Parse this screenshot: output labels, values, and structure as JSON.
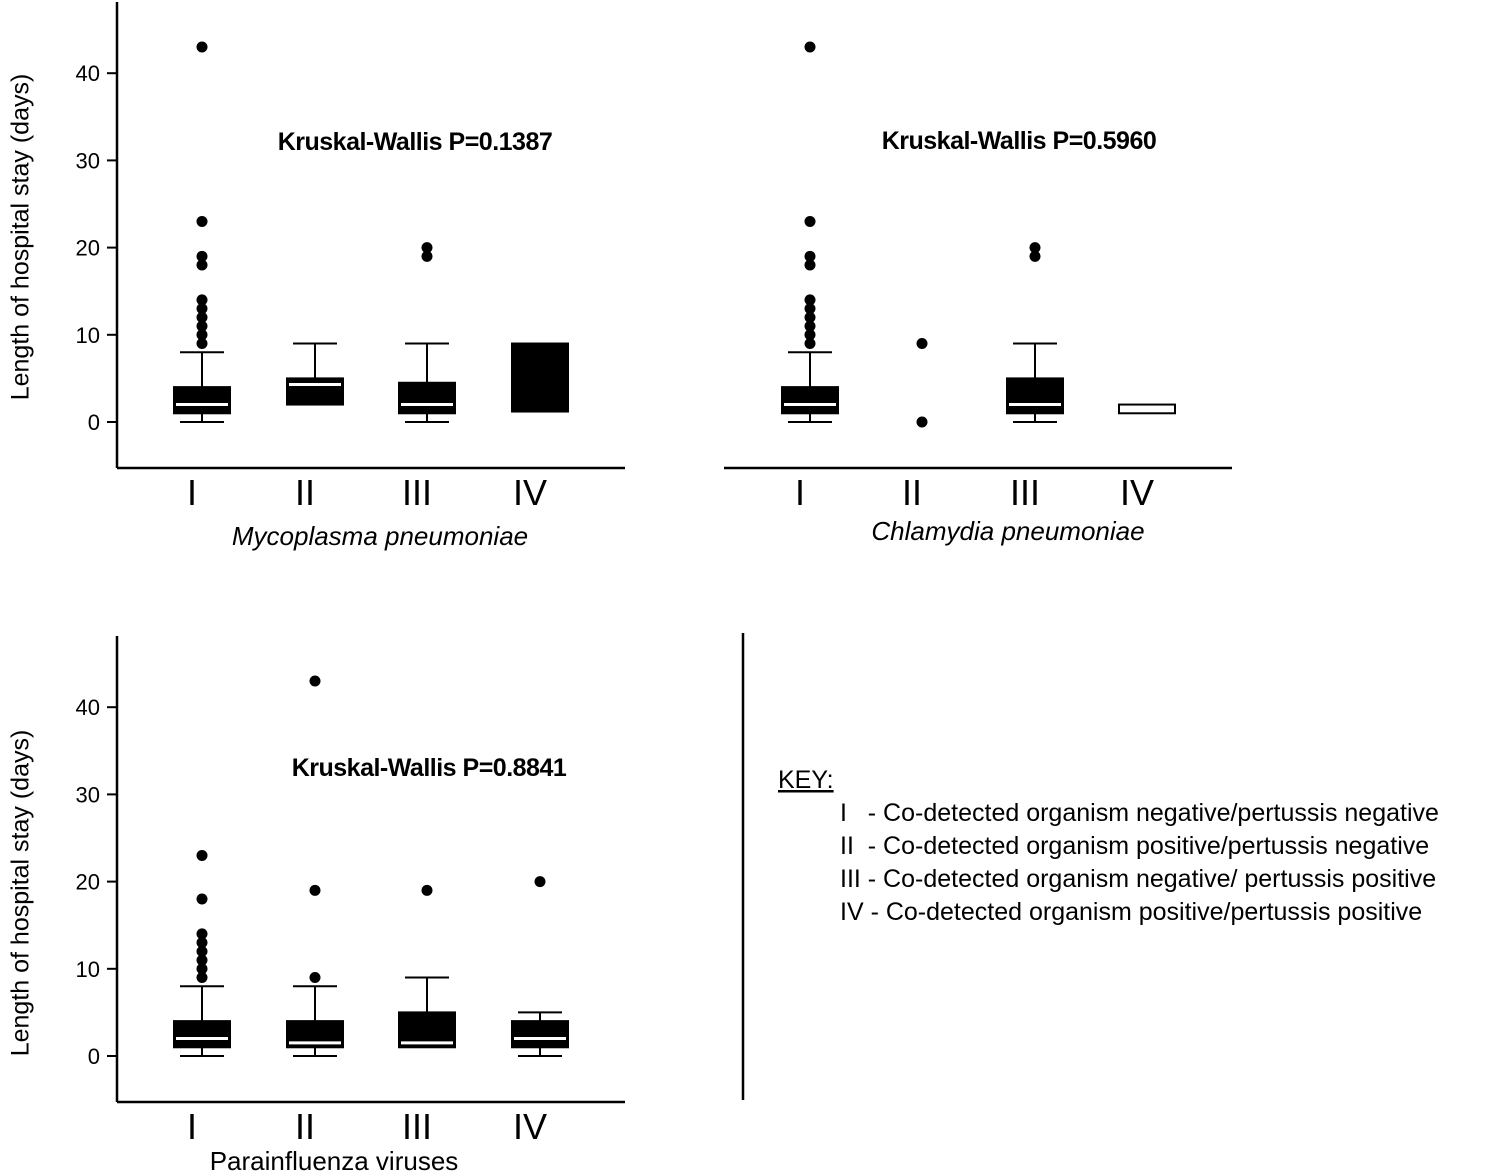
{
  "chart_data": [
    {
      "type": "box",
      "annotation": "Kruskal-Wallis P=0.1387",
      "xlabel": "Mycoplasma pneumoniae",
      "xlabel_italic": true,
      "ylabel": "Length of hospital stay (days)",
      "ylim": [
        -5,
        46
      ],
      "yticks": [
        0,
        10,
        20,
        30,
        40
      ],
      "categories": [
        "I",
        "II",
        "III",
        "IV"
      ],
      "boxes": [
        {
          "q1": 1,
          "median": 2,
          "q3": 4,
          "whisker_low": 0,
          "whisker_high": 8,
          "outliers": [
            9,
            10,
            11,
            12,
            13,
            14,
            18,
            19,
            23,
            43
          ]
        },
        {
          "q1": 2,
          "median": 4.3,
          "q3": 5,
          "whisker_low": 2,
          "whisker_high": 9,
          "outliers": []
        },
        {
          "q1": 1,
          "median": 2,
          "q3": 4.5,
          "whisker_low": 0,
          "whisker_high": 9,
          "outliers": [
            19,
            20
          ]
        },
        {
          "q1": 1.2,
          "median": null,
          "q3": 9,
          "whisker_low": null,
          "whisker_high": null,
          "outliers": []
        }
      ]
    },
    {
      "type": "box",
      "annotation": "Kruskal-Wallis P=0.5960",
      "xlabel": "Chlamydia pneumoniae",
      "xlabel_italic": true,
      "ylabel": "",
      "ylim": [
        -5,
        46
      ],
      "yticks": [],
      "categories": [
        "I",
        "II",
        "III",
        "IV"
      ],
      "boxes": [
        {
          "q1": 1,
          "median": 2,
          "q3": 4,
          "whisker_low": 0,
          "whisker_high": 8,
          "outliers": [
            9,
            10,
            11,
            12,
            13,
            14,
            18,
            19,
            23,
            43
          ]
        },
        {
          "q1": null,
          "median": null,
          "q3": null,
          "whisker_low": null,
          "whisker_high": null,
          "outliers": [
            0,
            9
          ]
        },
        {
          "q1": 1,
          "median": 2,
          "q3": 5,
          "whisker_low": 0,
          "whisker_high": 9,
          "outliers": [
            19,
            20
          ]
        },
        {
          "q1": 1,
          "median": 1.5,
          "q3": 2,
          "whisker_low": null,
          "whisker_high": null,
          "outliers": []
        }
      ]
    },
    {
      "type": "box",
      "annotation": "Kruskal-Wallis P=0.8841",
      "xlabel": "Parainfluenza viruses",
      "xlabel_italic": false,
      "ylabel": "Length of hospital stay (days)",
      "ylim": [
        -5,
        46
      ],
      "yticks": [
        0,
        10,
        20,
        30,
        40
      ],
      "categories": [
        "I",
        "II",
        "III",
        "IV"
      ],
      "boxes": [
        {
          "q1": 1,
          "median": 2,
          "q3": 4,
          "whisker_low": 0,
          "whisker_high": 8,
          "outliers": [
            9,
            10,
            11,
            12,
            13,
            14,
            18,
            23
          ]
        },
        {
          "q1": 1,
          "median": 1.5,
          "q3": 4,
          "whisker_low": 0,
          "whisker_high": 8,
          "outliers": [
            9,
            19,
            43
          ]
        },
        {
          "q1": 1,
          "median": 1.5,
          "q3": 5,
          "whisker_low": null,
          "whisker_high": 9,
          "outliers": [
            19
          ]
        },
        {
          "q1": 1,
          "median": 2,
          "q3": 4,
          "whisker_low": 0,
          "whisker_high": 5,
          "outliers": [
            20
          ]
        }
      ]
    }
  ],
  "key": {
    "title": "KEY:",
    "items": [
      "I   - Co-detected organism negative/pertussis negative",
      "II  - Co-detected organism positive/pertussis negative",
      "III - Co-detected organism negative/ pertussis positive",
      "IV - Co-detected organism positive/pertussis positive"
    ]
  }
}
